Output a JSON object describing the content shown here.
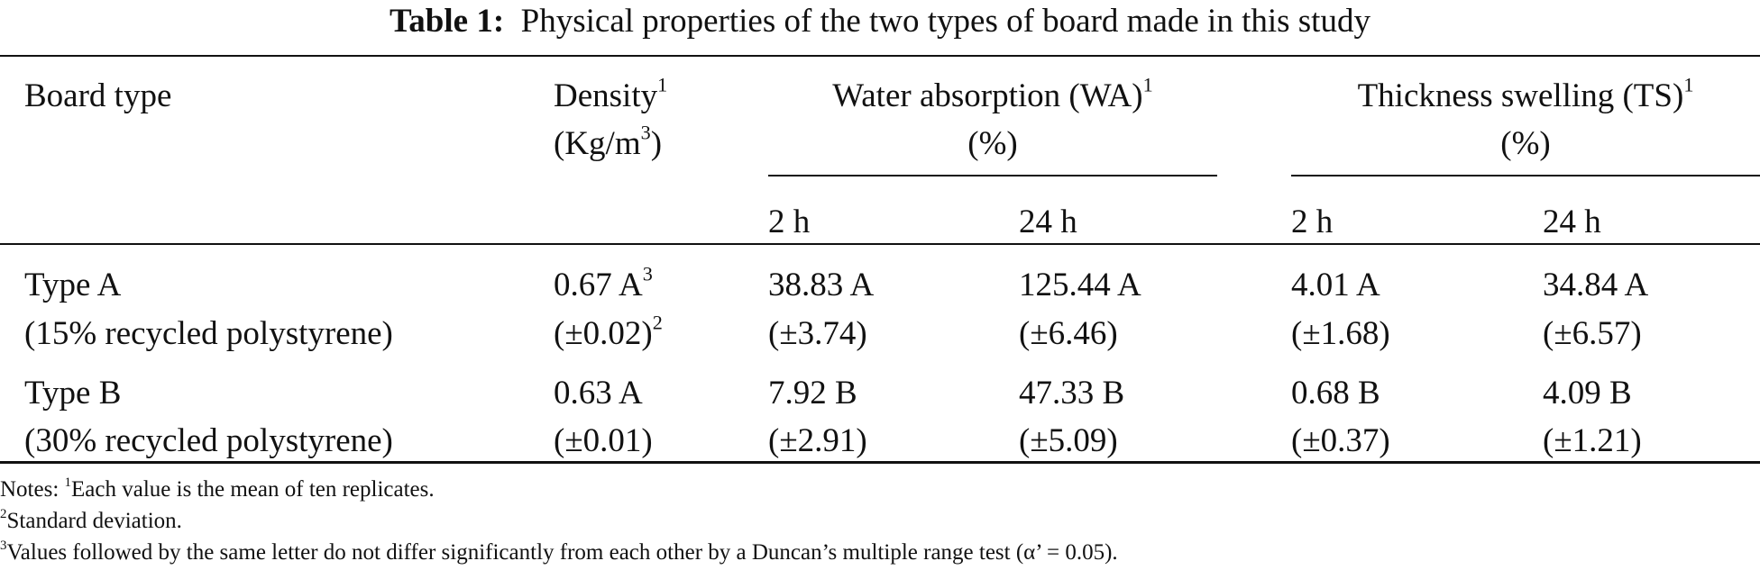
{
  "title": {
    "label": "Table 1:",
    "text": "Physical properties of the two types of board made in this study"
  },
  "header": {
    "board_type": "Board type",
    "density": {
      "label": "Density",
      "sup": "1",
      "unit": "(Kg/m",
      "unit_sup": "3",
      "unit_close": ")"
    },
    "wa": {
      "label": "Water absorption (WA)",
      "sup": "1",
      "unit": "(%)"
    },
    "ts": {
      "label": "Thickness swelling (TS)",
      "sup": "1",
      "unit": "(%)"
    },
    "sub": [
      "2 h",
      "24 h",
      "2 h",
      "24 h"
    ]
  },
  "rows": [
    {
      "type": "Type A",
      "desc": "(15% recycled polystyrene)",
      "density": "0.67 A",
      "density_sup": "3",
      "density_sd": "(±0.02)",
      "density_sd_sup": "2",
      "values": [
        "38.83 A",
        "125.44 A",
        "4.01 A",
        "34.84 A"
      ],
      "sd": [
        "(±3.74)",
        "(±6.46)",
        "(±1.68)",
        "(±6.57)"
      ]
    },
    {
      "type": "Type B",
      "desc": "(30% recycled polystyrene)",
      "density": "0.63 A",
      "density_sd": "(±0.01)",
      "values": [
        "7.92 B",
        "47.33 B",
        "0.68 B",
        "4.09 B"
      ],
      "sd": [
        "(±2.91)",
        "(±5.09)",
        "(±0.37)",
        "(±1.21)"
      ]
    }
  ],
  "notes": [
    {
      "prefix": "Notes: ",
      "sup": "1",
      "text": "Each value is the mean of ten replicates."
    },
    {
      "sup": "2",
      "text": "Standard deviation."
    },
    {
      "sup": "3",
      "text": "Values followed by the same letter do not differ significantly from each other by a Duncan’s multiple range test (α’ = 0.05)."
    }
  ]
}
